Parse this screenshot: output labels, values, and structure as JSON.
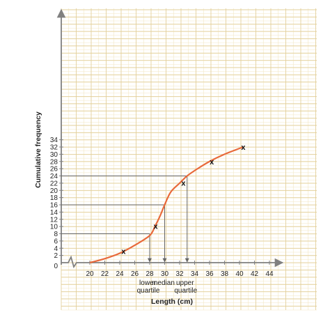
{
  "chart_data": {
    "type": "line",
    "xlabel": "Length (cm)",
    "ylabel": "Cumulative frequency",
    "x_ticks": [
      20,
      22,
      24,
      26,
      28,
      30,
      32,
      34,
      36,
      38,
      40,
      42,
      44
    ],
    "y_ticks": [
      2,
      4,
      6,
      8,
      10,
      12,
      14,
      16,
      18,
      20,
      22,
      24,
      26,
      28,
      30,
      32,
      34
    ],
    "origin_label": "0",
    "xlim": [
      20,
      46
    ],
    "ylim": [
      0,
      35
    ],
    "grid": true,
    "colors": {
      "curve": "#e8693a",
      "grid_minor": "#f3e7c4",
      "grid_major": "#e2cf9a",
      "axis": "#808080"
    },
    "curve": {
      "x": [
        20,
        22,
        24,
        26,
        28,
        28.7,
        29.4,
        30,
        30.8,
        32,
        33,
        34.4,
        36,
        38,
        40.5
      ],
      "y": [
        0,
        1.1,
        2.6,
        4.8,
        7.5,
        10,
        13,
        16,
        19.5,
        22,
        24,
        26,
        28,
        30,
        32
      ]
    },
    "plotted_points": {
      "marker": "x",
      "x": [
        24.5,
        28.8,
        32.5,
        36.3,
        40.5
      ],
      "y": [
        3.2,
        10.1,
        22.1,
        28,
        32
      ]
    },
    "quartile_lines": [
      {
        "label_lines": [
          "lower",
          "quartile"
        ],
        "y": 8,
        "x": 28
      },
      {
        "label_lines": [
          "median"
        ],
        "y": 16,
        "x": 30
      },
      {
        "label_lines": [
          "upper",
          "quartile"
        ],
        "y": 24,
        "x": 33
      }
    ]
  }
}
